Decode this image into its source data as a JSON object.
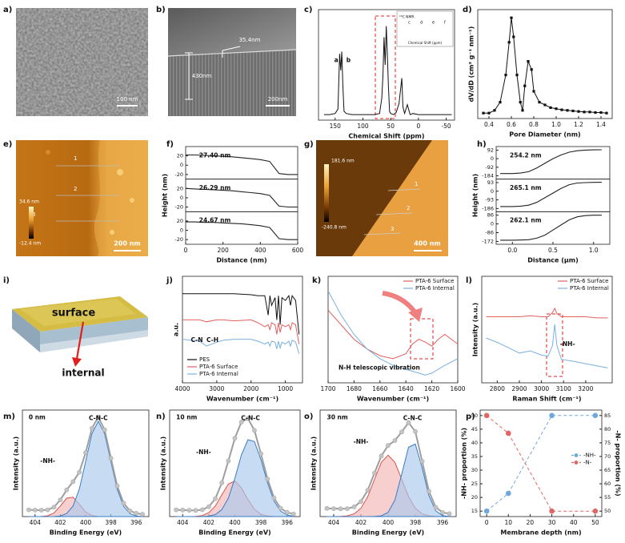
{
  "panel_labels": [
    "a)",
    "b)",
    "c)",
    "d)",
    "e)",
    "f)",
    "g)",
    "h)",
    "i)",
    "j)",
    "k)",
    "l)",
    "m)",
    "n)",
    "o)",
    "p)"
  ],
  "images": {
    "a": {
      "scale_bar": "100 nm"
    },
    "b": {
      "labels": [
        "35.4nm",
        "430nm"
      ],
      "scale_bar": "200nm"
    },
    "e": {
      "lines": [
        "1",
        "2",
        "3"
      ],
      "color_max": "34.6 nm",
      "color_min": "-12.4 nm",
      "scale_bar": "200 nm"
    },
    "g": {
      "lines": [
        "1",
        "2",
        "3"
      ],
      "color_max": "181.6 nm",
      "color_min": "-240.8 nm",
      "scale_bar": "400 nm"
    },
    "i": {
      "labels": [
        "surface",
        "internal"
      ]
    }
  },
  "chart_data": [
    {
      "type": "line",
      "xlabel": "Chemical Shift (ppm)",
      "xlim": [
        180,
        -65
      ],
      "xticks": [
        150,
        100,
        50,
        0,
        -50
      ],
      "ylim": [
        0,
        100
      ],
      "x": [
        170,
        160,
        150,
        145,
        142,
        140,
        138,
        136,
        134,
        130,
        120,
        100,
        80,
        70,
        66,
        64,
        62,
        60,
        58,
        56,
        54,
        52,
        50,
        45,
        40,
        35,
        30,
        28,
        25,
        20,
        15,
        10,
        0,
        -20,
        -40,
        -60
      ],
      "series": [
        {
          "color": "#111111",
          "values": [
            5,
            5,
            6,
            10,
            60,
            45,
            62,
            30,
            8,
            6,
            5,
            5,
            5,
            6,
            20,
            40,
            75,
            50,
            85,
            60,
            30,
            8,
            6,
            5,
            7,
            15,
            38,
            12,
            6,
            14,
            5,
            6,
            5,
            5,
            5,
            5
          ]
        }
      ],
      "annotations": [
        "a",
        "b"
      ],
      "inset": {
        "title": "¹³C NMR",
        "xlabel": "Chemical Shift (ppm)",
        "peaks": [
          "c",
          "d",
          "e",
          "f"
        ]
      }
    },
    {
      "type": "line",
      "xlabel": "Pore Diameter (nm)",
      "ylabel": "dV/dD (cm³ g⁻¹ nm⁻¹)",
      "xlim": [
        0.3,
        1.5
      ],
      "xticks": [
        0.4,
        0.6,
        0.8,
        {
          "value": 1,
          "label": "1.0"
        },
        1.2,
        1.4
      ],
      "ylim": [
        0,
        20
      ],
      "x": [
        0.35,
        0.4,
        0.45,
        0.5,
        0.55,
        0.58,
        0.6,
        0.62,
        0.65,
        0.68,
        0.7,
        0.72,
        0.75,
        0.78,
        0.8,
        0.85,
        0.9,
        0.95,
        1.0,
        1.05,
        1.1,
        1.15,
        1.2,
        1.25,
        1.3,
        1.35,
        1.4,
        1.45
      ],
      "series": [
        {
          "color": "#111111",
          "marker": "square",
          "values": [
            1,
            1,
            1.5,
            3,
            8,
            14,
            18.5,
            15,
            8,
            3,
            1.5,
            6,
            10.5,
            9,
            5,
            3,
            2.5,
            2,
            1.8,
            1.6,
            1.5,
            1.4,
            1.3,
            1.2,
            1.2,
            1.1,
            1.1,
            1.0
          ]
        }
      ]
    },
    {
      "type": "line-stack",
      "xlabel": "Distance (nm)",
      "ylabel": "Height (nm)",
      "xlim": [
        0,
        600
      ],
      "xticks": [
        0,
        200,
        400,
        600
      ],
      "color": "#222222",
      "x": [
        0,
        50,
        100,
        150,
        200,
        250,
        300,
        350,
        400,
        450,
        500,
        550,
        600
      ],
      "subplots": [
        {
          "annotation": "27.40 nm",
          "ylim": [
            -30,
            40
          ],
          "yticks": [
            -20,
            0,
            20
          ],
          "values": [
            22,
            22,
            21,
            20,
            19,
            18,
            16,
            14,
            12,
            8,
            -18,
            -20,
            -20
          ]
        },
        {
          "annotation": "26.29 nm",
          "ylim": [
            -30,
            40
          ],
          "yticks": [
            -20,
            0,
            20
          ],
          "values": [
            20,
            19,
            18,
            17,
            16,
            15,
            13,
            11,
            9,
            5,
            -18,
            -20,
            -20
          ]
        },
        {
          "annotation": "24.67 nm",
          "ylim": [
            -30,
            40
          ],
          "yticks": [
            -20,
            0,
            20
          ],
          "values": [
            18,
            18,
            17,
            17,
            16,
            15,
            14,
            12,
            10,
            6,
            -18,
            -20,
            -20
          ]
        }
      ]
    },
    {
      "type": "line-stack",
      "xlabel": "Distance (μm)",
      "ylabel": "Height (nm)",
      "xlim": [
        -0.2,
        1.2
      ],
      "xticks": [
        {
          "value": 0,
          "label": "0.0"
        },
        0.5,
        {
          "value": 1,
          "label": "1.0"
        }
      ],
      "color": "#222222",
      "x": [
        -0.15,
        0,
        0.1,
        0.2,
        0.3,
        0.4,
        0.5,
        0.6,
        0.7,
        0.8,
        0.9,
        1.0,
        1.1
      ],
      "subplots": [
        {
          "annotation": "254.2 nm",
          "ylim": [
            -220,
            130
          ],
          "yticks": [
            -184,
            -92,
            0,
            92
          ],
          "values": [
            -160,
            -160,
            -155,
            -140,
            -100,
            -50,
            0,
            40,
            70,
            85,
            92,
            95,
            96
          ]
        },
        {
          "annotation": "265.1 nm",
          "ylim": [
            -220,
            130
          ],
          "yticks": [
            -186,
            -93,
            0,
            93
          ],
          "values": [
            -165,
            -165,
            -160,
            -150,
            -120,
            -70,
            -20,
            30,
            70,
            88,
            93,
            95,
            96
          ]
        },
        {
          "annotation": "262.1 nm",
          "ylim": [
            -200,
            120
          ],
          "yticks": [
            -172,
            -86,
            0,
            86
          ],
          "values": [
            -160,
            -160,
            -158,
            -155,
            -140,
            -110,
            -60,
            -10,
            40,
            70,
            82,
            86,
            86
          ]
        }
      ]
    },
    {
      "type": "line",
      "xlabel": "Wavenumber (cm⁻¹)",
      "ylabel": "a.u.",
      "xlim": [
        4000,
        500
      ],
      "xticks": [
        4000,
        3000,
        2000,
        1000
      ],
      "ylim": [
        -10,
        100
      ],
      "legend": "lower left",
      "x": [
        4000,
        3500,
        3300,
        3000,
        2800,
        2500,
        2000,
        1800,
        1600,
        1500,
        1450,
        1400,
        1300,
        1250,
        1200,
        1150,
        1100,
        1000,
        900,
        850,
        800,
        700,
        600
      ],
      "series": [
        {
          "name": "PES",
          "color": "#111111",
          "values": [
            82,
            82,
            82,
            82,
            82,
            82,
            81,
            80,
            80,
            60,
            80,
            70,
            78,
            55,
            80,
            50,
            78,
            75,
            80,
            70,
            80,
            75,
            40
          ]
        },
        {
          "name": "PTA-6 Surface",
          "color": "#e06060",
          "values": [
            55,
            55,
            53,
            55,
            55,
            54,
            55,
            52,
            48,
            50,
            45,
            52,
            50,
            40,
            52,
            42,
            50,
            48,
            50,
            45,
            52,
            50,
            30
          ]
        },
        {
          "name": "PTA-6 Internal",
          "color": "#7ab0de",
          "values": [
            35,
            33,
            28,
            32,
            34,
            35,
            35,
            33,
            30,
            32,
            28,
            33,
            32,
            25,
            33,
            26,
            32,
            30,
            33,
            28,
            34,
            32,
            20
          ]
        }
      ],
      "annotations": [
        "C-N",
        "C-H"
      ]
    },
    {
      "type": "line",
      "xlabel": "Wavenumber (cm⁻¹)",
      "xlim": [
        1700,
        1600
      ],
      "xticks": [
        1700,
        1680,
        1660,
        1640,
        1620,
        1600
      ],
      "ylim": [
        0,
        110
      ],
      "legend": "upper right",
      "x": [
        1700,
        1690,
        1680,
        1670,
        1660,
        1650,
        1640,
        1635,
        1630,
        1625,
        1620,
        1615,
        1610,
        1600
      ],
      "series": [
        {
          "name": "PTA-6 Surface",
          "color": "#e06060",
          "values": [
            75,
            60,
            45,
            35,
            28,
            25,
            30,
            40,
            45,
            42,
            38,
            45,
            50,
            40
          ]
        },
        {
          "name": "PTA-6 Internal",
          "color": "#7ab0de",
          "values": [
            95,
            70,
            50,
            35,
            25,
            18,
            14,
            12,
            10,
            8,
            10,
            14,
            18,
            25
          ]
        }
      ],
      "annotations": [
        "N-H telescopic vibration"
      ]
    },
    {
      "type": "line",
      "xlabel": "Raman Shift (cm⁻¹)",
      "ylabel": "Intensity (a.u.)",
      "xlim": [
        2730,
        3320
      ],
      "xticks": [
        2800,
        2900,
        3000,
        3100,
        3200
      ],
      "ylim": [
        0,
        100
      ],
      "legend": "upper right",
      "x": [
        2750,
        2800,
        2850,
        2900,
        2950,
        3000,
        3030,
        3050,
        3060,
        3070,
        3090,
        3150,
        3200,
        3250,
        3300
      ],
      "series": [
        {
          "name": "PTA-6 Surface",
          "color": "#e06060",
          "values": [
            62,
            62,
            62,
            62,
            63,
            62,
            62,
            66,
            70,
            65,
            62,
            62,
            62,
            61,
            61
          ]
        },
        {
          "name": "PTA-6 Internal",
          "color": "#7ab0de",
          "values": [
            42,
            38,
            33,
            28,
            30,
            26,
            25,
            35,
            55,
            35,
            22,
            20,
            18,
            16,
            14
          ]
        }
      ],
      "annotations": [
        "-NH-"
      ]
    },
    {
      "type": "line",
      "xlabel": "Binding Energy (eV)",
      "ylabel": "Intensity (a.u.)",
      "xlim": [
        405,
        395
      ],
      "xticks": [
        404,
        402,
        400,
        398,
        396
      ],
      "ylim": [
        0,
        95
      ],
      "x": [
        404.5,
        404,
        403.5,
        403,
        402.5,
        402,
        401.5,
        401,
        400.5,
        400,
        399.5,
        399,
        398.5,
        398,
        397.5,
        397,
        396.5,
        396,
        395.5
      ],
      "series": [
        {
          "color": "#d9534f",
          "fill": "#f2b5b3",
          "values": [
            0,
            0,
            0.1,
            0.7,
            3.2,
            9.4,
            16.4,
            17.3,
            10.9,
            4.1,
            0.9,
            0.1,
            0,
            0,
            0,
            0,
            0,
            0,
            0
          ]
        },
        {
          "color": "#3a7cc3",
          "fill": "#a9c9ec",
          "values": [
            0,
            0,
            0,
            0,
            0.1,
            0.6,
            2.7,
            9.3,
            24.4,
            48.9,
            74,
            85,
            74,
            48.9,
            24.4,
            9.3,
            2.7,
            0.6,
            0.1
          ]
        },
        {
          "color": "#9e9e9e",
          "marker": "circle",
          "values": [
            6,
            5.8,
            5.7,
            6,
            8.4,
            14.9,
            23.8,
            31.1,
            39.5,
            57,
            78.7,
            88.7,
            77.4,
            52,
            27.3,
            12,
            5.2,
            2.9,
            2.1
          ]
        }
      ],
      "annotations": [
        "0 nm",
        "C-N-C",
        "-NH-"
      ]
    },
    {
      "type": "line",
      "xlabel": "Binding Energy (eV)",
      "ylabel": "Intensity (a.u.)",
      "xlim": [
        405,
        395
      ],
      "xticks": [
        404,
        402,
        400,
        398,
        396
      ],
      "ylim": [
        0,
        95
      ],
      "x": [
        404.5,
        404,
        403.5,
        403,
        402.5,
        402,
        401.5,
        401,
        400.5,
        400,
        399.5,
        399,
        398.5,
        398,
        397.5,
        397,
        396.5,
        396,
        395.5
      ],
      "series": [
        {
          "color": "#d9534f",
          "fill": "#f2b5b3",
          "values": [
            0,
            0,
            0,
            0.2,
            0.9,
            3.5,
            9.5,
            19.4,
            29,
            31.8,
            25.6,
            15.2,
            6.6,
            2.1,
            0.5,
            0.1,
            0,
            0,
            0
          ]
        },
        {
          "color": "#3a7cc3",
          "fill": "#a9c9ec",
          "values": [
            0,
            0,
            0,
            0,
            0.1,
            0.4,
            1.8,
            6.2,
            16.5,
            34.1,
            54.8,
            68.6,
            66.9,
            50.8,
            30.1,
            13.9,
            5,
            1.4,
            0.3
          ]
        },
        {
          "color": "#9e9e9e",
          "marker": "circle",
          "values": [
            6,
            5.8,
            5.6,
            5.5,
            6.1,
            8.8,
            16,
            30.1,
            49.7,
            69.9,
            84.2,
            87.4,
            76.9,
            56,
            33.5,
            16.7,
            7.5,
            3.7,
            2.3
          ]
        }
      ],
      "annotations": [
        "10 nm",
        "C-N-C",
        "-NH-"
      ]
    },
    {
      "type": "line",
      "xlabel": "Binding Energy (eV)",
      "ylabel": "Intensity (a.u.)",
      "xlim": [
        405,
        395
      ],
      "xticks": [
        404,
        402,
        400,
        398,
        396
      ],
      "ylim": [
        0,
        78
      ],
      "x": [
        404.5,
        404,
        403.5,
        403,
        402.5,
        402,
        401.5,
        401,
        400.5,
        400,
        399.5,
        399,
        398.5,
        398,
        397.5,
        397,
        396.5,
        396,
        395.5
      ],
      "series": [
        {
          "color": "#d9534f",
          "fill": "#f2b5b3",
          "values": [
            0,
            0,
            0.1,
            0.5,
            2,
            6.1,
            14.6,
            27.3,
            39.7,
            45,
            39.7,
            27.3,
            14.6,
            6.1,
            2,
            0.5,
            0.1,
            0,
            0
          ]
        },
        {
          "color": "#3a7cc3",
          "fill": "#a9c9ec",
          "values": [
            0,
            0,
            0,
            0,
            0,
            0,
            0,
            0.1,
            0.5,
            3.1,
            12.2,
            31.1,
            50.8,
            53.1,
            35.6,
            15.3,
            4.2,
            0.7,
            0.1
          ]
        },
        {
          "color": "#9e9e9e",
          "marker": "circle",
          "values": [
            6,
            5.8,
            5.7,
            5.8,
            7.1,
            11,
            19.3,
            31.9,
            44.4,
            52.1,
            55.7,
            62,
            68.8,
            62.3,
            40.5,
            18.5,
            6.8,
            3,
            2.1
          ]
        }
      ],
      "annotations": [
        "30 nm",
        "C-N-C",
        "-NH-"
      ]
    },
    {
      "type": "line",
      "xlabel": "Membrane depth (nm)",
      "ylabel": "-NH- proportion (%)",
      "y2label": "-N- proportion (%)",
      "xlim": [
        -3,
        53
      ],
      "xticks": [
        0,
        10,
        20,
        30,
        40,
        50
      ],
      "ylim": [
        13,
        52
      ],
      "yticks": [
        15,
        20,
        25,
        30,
        35,
        40,
        45,
        50
      ],
      "y2lim": [
        48,
        87
      ],
      "y2ticks": [
        50,
        55,
        60,
        65,
        70,
        75,
        80,
        85
      ],
      "legend": "center right",
      "x": [
        0,
        10,
        30,
        50
      ],
      "series": [
        {
          "name": "-NH-",
          "color": "#6fa8dc",
          "marker": "circle",
          "dashed": true,
          "values": [
            15,
            21.5,
            50,
            50
          ]
        },
        {
          "name": "-N-",
          "color": "#e06666",
          "marker": "circle",
          "dashed": true,
          "axis": "y2",
          "values": [
            85,
            78.5,
            50,
            50
          ]
        }
      ]
    }
  ]
}
